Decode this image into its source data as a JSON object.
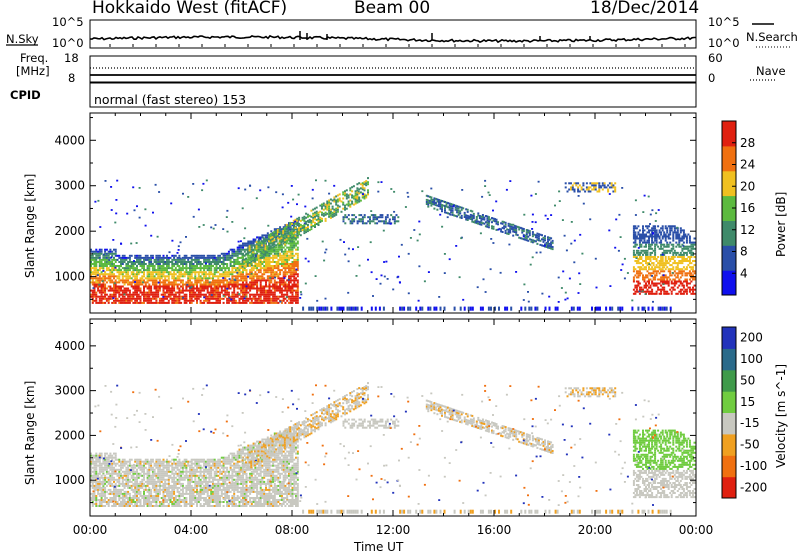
{
  "header": {
    "title": "Hokkaido West (fitACF)",
    "beam": "Beam 00",
    "date": "18/Dec/2014"
  },
  "noise_panel": {
    "left_label": "N.Sky",
    "right_label": "N.Search",
    "left_ticks": [
      "10^5",
      "10^0"
    ],
    "right_ticks": [
      "10^5",
      "10^0"
    ]
  },
  "freq_panel": {
    "left_label_1": "Freq.",
    "left_label_2": "[MHz]",
    "left_ticks": [
      "18",
      "8"
    ],
    "right_label": "Nave",
    "right_ticks": [
      "60",
      "0"
    ]
  },
  "cpid_panel": {
    "label": "CPID",
    "mode_text": "normal (fast stereo) 153"
  },
  "x_axis": {
    "label": "Time UT",
    "ticks": [
      "00:00",
      "04:00",
      "08:00",
      "12:00",
      "16:00",
      "20:00",
      "00:00"
    ]
  },
  "chart_data": [
    {
      "type": "heatmap",
      "name": "power",
      "ylabel": "Slant Range [km]",
      "yticks": [
        1000,
        2000,
        3000,
        4000
      ],
      "ylim": [
        200,
        4600
      ],
      "xlim": [
        0,
        24
      ],
      "colorbar": {
        "label": "Power [dB]",
        "ticks": [
          4,
          8,
          12,
          16,
          20,
          24,
          28
        ],
        "range": [
          0,
          32
        ],
        "colors": [
          "#1010ee",
          "#2a4fa8",
          "#3f8a6a",
          "#5cba3f",
          "#f0c020",
          "#f07010",
          "#e02010"
        ]
      }
    },
    {
      "type": "heatmap",
      "name": "velocity",
      "ylabel": "Slant Range [km]",
      "yticks": [
        1000,
        2000,
        3000,
        4000
      ],
      "ylim": [
        200,
        4600
      ],
      "xlim": [
        0,
        24
      ],
      "colorbar": {
        "label": "Velocity [m s^-1]",
        "ticks": [
          "200",
          "100",
          "50",
          "15",
          "-15",
          "-50",
          "-100",
          "-200"
        ],
        "colors": [
          "#2233bb",
          "#2a6a8a",
          "#3f9a4a",
          "#70cc40",
          "#c8c8c0",
          "#f0a020",
          "#f07010",
          "#e02010"
        ]
      }
    }
  ]
}
